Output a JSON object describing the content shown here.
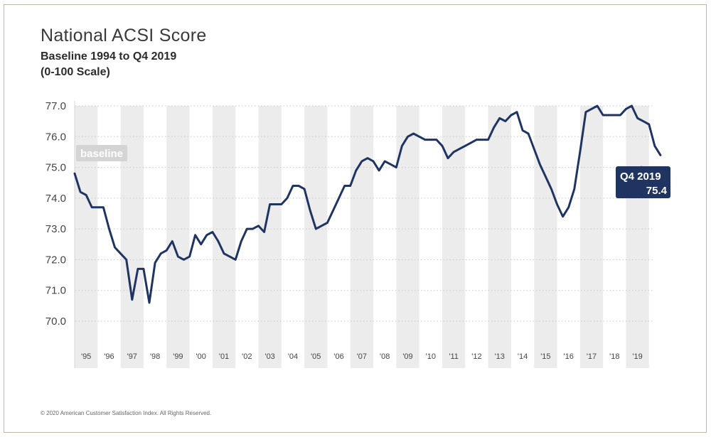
{
  "chart_data": {
    "type": "line",
    "title": "National ACSI Score",
    "subtitle_lines": [
      "Baseline 1994 to Q4 2019",
      "(0-100 Scale)"
    ],
    "yticks": [
      "77.0",
      "76.0",
      "75.0",
      "74.0",
      "73.0",
      "72.0",
      "71.0",
      "70.0"
    ],
    "ylim": [
      69.0,
      77.0
    ],
    "xlim": [
      1994.5,
      2020.25
    ],
    "xticks": [
      {
        "label": "'95",
        "year": 1995
      },
      {
        "label": "'96",
        "year": 1996
      },
      {
        "label": "'97",
        "year": 1997
      },
      {
        "label": "'98",
        "year": 1998
      },
      {
        "label": "'99",
        "year": 1999
      },
      {
        "label": "'00",
        "year": 2000
      },
      {
        "label": "'01",
        "year": 2001
      },
      {
        "label": "'02",
        "year": 2002
      },
      {
        "label": "'03",
        "year": 2003
      },
      {
        "label": "'04",
        "year": 2004
      },
      {
        "label": "'05",
        "year": 2005
      },
      {
        "label": "'06",
        "year": 2006
      },
      {
        "label": "'07",
        "year": 2007
      },
      {
        "label": "'08",
        "year": 2008
      },
      {
        "label": "'09",
        "year": 2009
      },
      {
        "label": "'10",
        "year": 2010
      },
      {
        "label": "'11",
        "year": 2011
      },
      {
        "label": "'12",
        "year": 2012
      },
      {
        "label": "'13",
        "year": 2013
      },
      {
        "label": "'14",
        "year": 2014
      },
      {
        "label": "'15",
        "year": 2015
      },
      {
        "label": "'16",
        "year": 2016
      },
      {
        "label": "'17",
        "year": 2017
      },
      {
        "label": "'18",
        "year": 2018
      },
      {
        "label": "'19",
        "year": 2019
      }
    ],
    "grid": "horizontal dotted lines, alternating vertical year bands",
    "series": [
      {
        "color": "#1f3461",
        "points": [
          [
            1994.5,
            74.8
          ],
          [
            1994.75,
            74.2
          ],
          [
            1995.0,
            74.1
          ],
          [
            1995.25,
            73.7
          ],
          [
            1995.5,
            73.7
          ],
          [
            1995.75,
            73.7
          ],
          [
            1996.0,
            73.0
          ],
          [
            1996.25,
            72.4
          ],
          [
            1996.5,
            72.2
          ],
          [
            1996.75,
            72.0
          ],
          [
            1997.0,
            70.7
          ],
          [
            1997.25,
            71.7
          ],
          [
            1997.5,
            71.7
          ],
          [
            1997.75,
            70.6
          ],
          [
            1998.0,
            71.9
          ],
          [
            1998.25,
            72.2
          ],
          [
            1998.5,
            72.3
          ],
          [
            1998.75,
            72.6
          ],
          [
            1999.0,
            72.1
          ],
          [
            1999.25,
            72.0
          ],
          [
            1999.5,
            72.1
          ],
          [
            1999.75,
            72.8
          ],
          [
            2000.0,
            72.5
          ],
          [
            2000.25,
            72.8
          ],
          [
            2000.5,
            72.9
          ],
          [
            2000.75,
            72.6
          ],
          [
            2001.0,
            72.2
          ],
          [
            2001.25,
            72.1
          ],
          [
            2001.5,
            72.0
          ],
          [
            2001.75,
            72.6
          ],
          [
            2002.0,
            73.0
          ],
          [
            2002.25,
            73.0
          ],
          [
            2002.5,
            73.1
          ],
          [
            2002.75,
            72.9
          ],
          [
            2003.0,
            73.8
          ],
          [
            2003.25,
            73.8
          ],
          [
            2003.5,
            73.8
          ],
          [
            2003.75,
            74.0
          ],
          [
            2004.0,
            74.4
          ],
          [
            2004.25,
            74.4
          ],
          [
            2004.5,
            74.3
          ],
          [
            2004.75,
            73.6
          ],
          [
            2005.0,
            73.0
          ],
          [
            2005.25,
            73.1
          ],
          [
            2005.5,
            73.2
          ],
          [
            2005.75,
            73.6
          ],
          [
            2006.0,
            74.0
          ],
          [
            2006.25,
            74.4
          ],
          [
            2006.5,
            74.4
          ],
          [
            2006.75,
            74.9
          ],
          [
            2007.0,
            75.2
          ],
          [
            2007.25,
            75.3
          ],
          [
            2007.5,
            75.2
          ],
          [
            2007.75,
            74.9
          ],
          [
            2008.0,
            75.2
          ],
          [
            2008.25,
            75.1
          ],
          [
            2008.5,
            75.0
          ],
          [
            2008.75,
            75.7
          ],
          [
            2009.0,
            76.0
          ],
          [
            2009.25,
            76.1
          ],
          [
            2009.5,
            76.0
          ],
          [
            2009.75,
            75.9
          ],
          [
            2010.0,
            75.9
          ],
          [
            2010.25,
            75.9
          ],
          [
            2010.5,
            75.7
          ],
          [
            2010.75,
            75.3
          ],
          [
            2011.0,
            75.5
          ],
          [
            2011.25,
            75.6
          ],
          [
            2011.5,
            75.7
          ],
          [
            2011.75,
            75.8
          ],
          [
            2012.0,
            75.9
          ],
          [
            2012.25,
            75.9
          ],
          [
            2012.5,
            75.9
          ],
          [
            2012.75,
            76.3
          ],
          [
            2013.0,
            76.6
          ],
          [
            2013.25,
            76.5
          ],
          [
            2013.5,
            76.7
          ],
          [
            2013.75,
            76.8
          ],
          [
            2014.0,
            76.2
          ],
          [
            2014.25,
            76.1
          ],
          [
            2014.5,
            75.6
          ],
          [
            2014.75,
            75.1
          ],
          [
            2015.0,
            74.7
          ],
          [
            2015.25,
            74.3
          ],
          [
            2015.5,
            73.8
          ],
          [
            2015.75,
            73.4
          ],
          [
            2016.0,
            73.7
          ],
          [
            2016.25,
            74.3
          ],
          [
            2016.5,
            75.5
          ],
          [
            2016.75,
            76.8
          ],
          [
            2017.0,
            76.9
          ],
          [
            2017.25,
            77.0
          ],
          [
            2017.5,
            76.7
          ],
          [
            2017.75,
            76.7
          ],
          [
            2018.0,
            76.7
          ],
          [
            2018.25,
            76.7
          ],
          [
            2018.5,
            76.9
          ],
          [
            2018.75,
            77.0
          ],
          [
            2019.0,
            76.6
          ],
          [
            2019.25,
            76.5
          ],
          [
            2019.5,
            76.4
          ],
          [
            2019.75,
            75.7
          ],
          [
            2020.0,
            75.4
          ]
        ]
      }
    ],
    "baseline_label": "baseline",
    "callout": {
      "line1": "Q4 2019",
      "line2": "75.4"
    }
  },
  "footer": {
    "copyright": "© 2020 American Customer Satisfaction Index. All Rights Reserved."
  }
}
